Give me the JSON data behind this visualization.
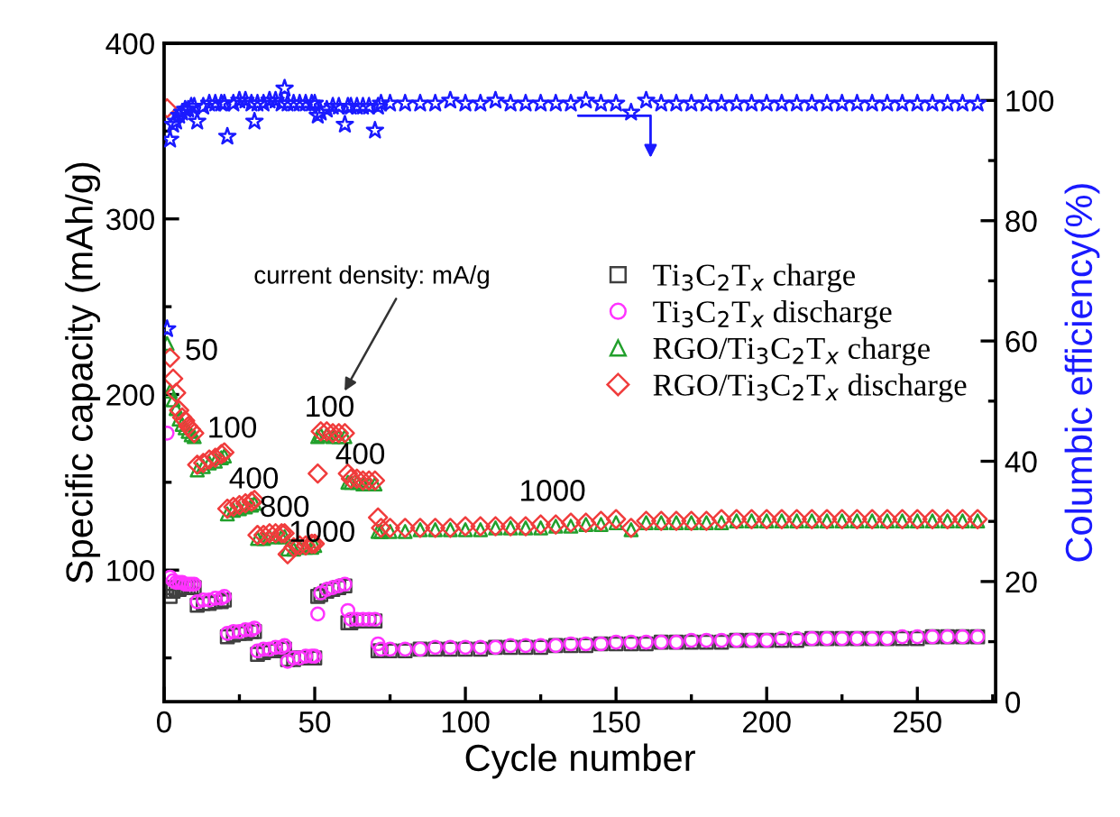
{
  "chart_data": {
    "type": "scatter",
    "xlabel": "Cycle number",
    "ylabel": "Specific capacity (mAh/g)",
    "y2label": "Columbic efficiency(%)",
    "x": [
      1,
      2,
      3,
      4,
      5,
      6,
      7,
      8,
      9,
      10,
      11,
      13,
      15,
      17,
      19,
      20,
      21,
      23,
      25,
      27,
      29,
      30,
      31,
      33,
      35,
      37,
      39,
      40,
      41,
      43,
      45,
      47,
      49,
      50,
      51,
      52,
      54,
      56,
      58,
      60,
      61,
      62,
      64,
      66,
      68,
      70,
      71,
      72,
      75,
      80,
      85,
      90,
      95,
      100,
      105,
      110,
      115,
      120,
      125,
      130,
      135,
      140,
      145,
      150,
      155,
      160,
      165,
      170,
      175,
      180,
      185,
      190,
      195,
      200,
      205,
      210,
      215,
      220,
      225,
      230,
      235,
      240,
      245,
      250,
      255,
      260,
      265,
      270
    ],
    "xlim": [
      0,
      276
    ],
    "xticks": [
      0,
      {
        "value": 25,
        "label": null
      },
      50,
      {
        "value": 75,
        "label": null
      },
      100,
      {
        "value": 125,
        "label": null
      },
      150,
      {
        "value": 175,
        "label": null
      },
      200,
      {
        "value": 225,
        "label": null
      },
      250,
      {
        "value": 275,
        "label": null
      }
    ],
    "ylim": [
      25,
      400
    ],
    "yticks": [
      {
        "value": 50,
        "label": null
      },
      100,
      {
        "value": 150,
        "label": null
      },
      200,
      {
        "value": 250,
        "label": null
      },
      300,
      {
        "value": 350,
        "label": null
      },
      400
    ],
    "y2lim": [
      0,
      109.5
    ],
    "y2ticks": [
      0,
      {
        "value": 10,
        "label": null
      },
      20,
      {
        "value": 30,
        "label": null
      },
      40,
      {
        "value": 50,
        "label": null
      },
      60,
      {
        "value": 70,
        "label": null
      },
      80,
      {
        "value": 90,
        "label": null
      },
      100
    ],
    "legend": "right",
    "grid": false,
    "series": [
      {
        "name": "Ti$_{3}$C$_{2}$T$_{x}$ charge",
        "color": "#404040",
        "marker": "square",
        "values": [
          90,
          85,
          88,
          89,
          89,
          90,
          90,
          90,
          90,
          90,
          80,
          81,
          81,
          82,
          82,
          83,
          62,
          63,
          64,
          64,
          65,
          65,
          52,
          53,
          54,
          54,
          55,
          55,
          49,
          49,
          50,
          50,
          50,
          50,
          85,
          86,
          88,
          89,
          90,
          91,
          70,
          70,
          71,
          71,
          71,
          71,
          54,
          54,
          54,
          54,
          55,
          55,
          55,
          55,
          55,
          56,
          56,
          56,
          56,
          57,
          57,
          57,
          58,
          58,
          58,
          58,
          59,
          59,
          59,
          59,
          59,
          60,
          60,
          60,
          60,
          60,
          61,
          61,
          61,
          61,
          61,
          61,
          61,
          61,
          62,
          62,
          62,
          62
        ]
      },
      {
        "name": "Ti$_{3}$C$_{2}$T$_{x}$ discharge",
        "color": "#ff33ff",
        "marker": "circle",
        "values": [
          178,
          96,
          94,
          93,
          93,
          93,
          92,
          92,
          92,
          92,
          82,
          83,
          83,
          84,
          84,
          85,
          64,
          65,
          65,
          66,
          66,
          67,
          54,
          55,
          55,
          56,
          56,
          57,
          48,
          50,
          50,
          51,
          51,
          51,
          75,
          87,
          89,
          90,
          91,
          92,
          77,
          72,
          72,
          72,
          72,
          72,
          58,
          55,
          55,
          55,
          55,
          56,
          56,
          56,
          56,
          56,
          57,
          57,
          57,
          57,
          58,
          58,
          58,
          59,
          59,
          59,
          59,
          59,
          60,
          60,
          60,
          60,
          60,
          60,
          61,
          61,
          61,
          61,
          61,
          61,
          61,
          61,
          62,
          62,
          62,
          62,
          62,
          62
        ]
      },
      {
        "name": "RGO/Ti$_{3}$C$_{2}$T$_{x}$ charge",
        "color": "#22a02c",
        "marker": "triangle",
        "values": [
          229,
          202,
          197,
          192,
          186,
          183,
          181,
          179,
          177,
          176,
          157,
          159,
          161,
          162,
          164,
          165,
          132,
          134,
          135,
          136,
          137,
          138,
          118,
          118,
          119,
          119,
          119,
          119,
          112,
          112,
          113,
          113,
          113,
          114,
          176,
          177,
          177,
          176,
          176,
          176,
          150,
          150,
          150,
          149,
          149,
          149,
          122,
          122,
          122,
          122,
          123,
          123,
          123,
          123,
          123,
          124,
          124,
          124,
          124,
          125,
          125,
          126,
          126,
          127,
          123,
          127,
          127,
          127,
          127,
          127,
          127,
          128,
          128,
          128,
          128,
          128,
          128,
          128,
          128,
          128,
          128,
          128,
          128,
          128,
          128,
          128,
          128,
          128
        ]
      },
      {
        "name": "RGO/Ti$_{3}$C$_{2}$T$_{x}$ discharge",
        "color": "#f03c3c",
        "marker": "diamond",
        "values": [
          363,
          221,
          209,
          201,
          191,
          187,
          185,
          182,
          180,
          178,
          160,
          161,
          163,
          164,
          166,
          167,
          135,
          136,
          137,
          138,
          139,
          140,
          120,
          120,
          121,
          121,
          121,
          121,
          109,
          113,
          114,
          114,
          115,
          115,
          155,
          179,
          179,
          178,
          178,
          178,
          155,
          152,
          152,
          151,
          151,
          151,
          130,
          124,
          124,
          124,
          124,
          124,
          124,
          125,
          125,
          125,
          125,
          125,
          126,
          126,
          127,
          127,
          128,
          129,
          124,
          128,
          128,
          128,
          128,
          128,
          129,
          129,
          129,
          129,
          129,
          129,
          129,
          129,
          129,
          129,
          129,
          129,
          129,
          129,
          129,
          129,
          129,
          129
        ]
      },
      {
        "color": "#1a1aff",
        "marker": "star",
        "axis": "y2",
        "values": [
          62,
          93.5,
          96,
          96.5,
          97.5,
          98,
          98.5,
          98.5,
          99,
          99,
          96.5,
          99,
          99.5,
          99.5,
          99.5,
          99.5,
          94,
          99.5,
          100,
          100,
          99.5,
          96.5,
          99.5,
          99.5,
          100,
          100,
          99.5,
          102,
          99.5,
          99.5,
          99.5,
          99.5,
          99.5,
          99.5,
          97.5,
          98,
          98.5,
          99,
          99,
          96,
          99,
          99,
          99,
          99,
          99,
          95,
          99,
          99.5,
          99.5,
          99.5,
          99.5,
          99.5,
          100,
          99.5,
          99.5,
          100,
          99.5,
          99.5,
          99.5,
          99.5,
          99.5,
          100,
          99.5,
          99.5,
          98,
          100,
          99.5,
          99.5,
          99.5,
          99.5,
          99.5,
          99.5,
          99.5,
          99.5,
          99.5,
          99.5,
          99.5,
          99.5,
          99.5,
          99.5,
          99.5,
          99.5,
          99.5,
          99.5,
          99.5,
          99.5,
          99.5,
          99.5
        ]
      }
    ],
    "annotations": [
      "current density: mA/g",
      "50",
      "100",
      "400",
      "800",
      "1000",
      "100",
      "400",
      "1000"
    ]
  }
}
